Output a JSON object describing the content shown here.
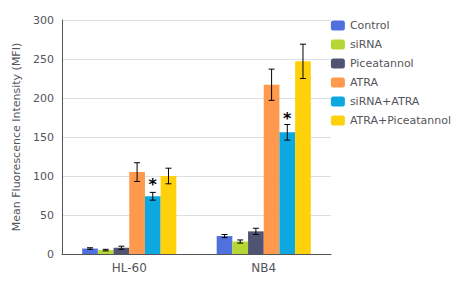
{
  "chart_data": {
    "type": "bar",
    "categories": [
      "HL-60",
      "NB4"
    ],
    "series": [
      {
        "name": "Control",
        "values": [
          7,
          23
        ],
        "errors": [
          1,
          2
        ]
      },
      {
        "name": "siRNA",
        "values": [
          5,
          16
        ],
        "errors": [
          1,
          2
        ]
      },
      {
        "name": "Piceatannol",
        "values": [
          8,
          29
        ],
        "errors": [
          2,
          4
        ]
      },
      {
        "name": "ATRA",
        "values": [
          105,
          217
        ],
        "errors": [
          12,
          20
        ]
      },
      {
        "name": "siRNA+ATRA",
        "values": [
          74,
          156
        ],
        "errors": [
          5,
          10
        ]
      },
      {
        "name": "ATRA+Piceatannol",
        "values": [
          100,
          247
        ],
        "errors": [
          10,
          22
        ]
      }
    ],
    "ylabel": "Mean Fluorescence Intensity (MFI)",
    "ylim": [
      0,
      300
    ],
    "yticks": [
      0,
      50,
      100,
      150,
      200,
      250,
      300
    ],
    "annotations": [
      {
        "text": "*",
        "category": "HL-60",
        "series": "siRNA+ATRA",
        "y": 79
      },
      {
        "text": "*",
        "category": "NB4",
        "series": "siRNA+ATRA",
        "y": 163
      }
    ],
    "legend": "upper right",
    "grid": true
  }
}
